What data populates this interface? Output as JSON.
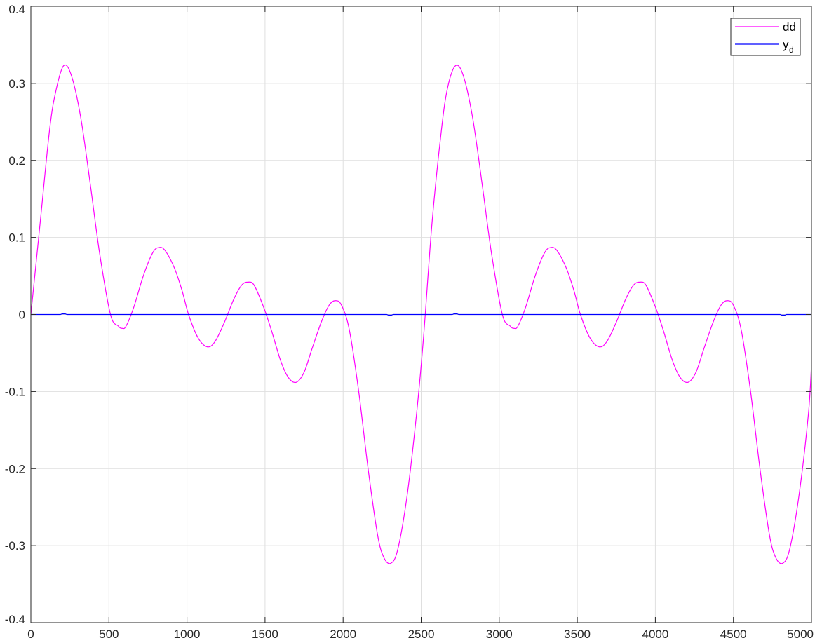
{
  "chart_data": {
    "type": "line",
    "xlim": [
      0,
      5000
    ],
    "ylim": [
      -0.4,
      0.4
    ],
    "grid": true,
    "legend_placement": "top-right",
    "x_ticks": [
      "0",
      "500",
      "1000",
      "1500",
      "2000",
      "2500",
      "3000",
      "3500",
      "4000",
      "4500",
      "5000"
    ],
    "y_ticks": [
      "-0.4",
      "-0.3",
      "-0.2",
      "-0.1",
      "0",
      "0.1",
      "0.2",
      "0.3",
      "0.4"
    ],
    "x_tick_values": [
      0,
      500,
      1000,
      1500,
      2000,
      2500,
      3000,
      3500,
      4000,
      4500,
      5000
    ],
    "y_tick_values": [
      -0.4,
      -0.3,
      -0.2,
      -0.1,
      0,
      0.1,
      0.2,
      0.3,
      0.4
    ],
    "series": [
      {
        "name": "dd",
        "color": "#ff00ff",
        "points": [
          [
            0,
            0
          ],
          [
            60,
            0.12
          ],
          [
            120,
            0.24
          ],
          [
            160,
            0.29
          ],
          [
            210,
            0.323
          ],
          [
            260,
            0.31
          ],
          [
            320,
            0.255
          ],
          [
            380,
            0.17
          ],
          [
            440,
            0.08
          ],
          [
            510,
            0.0
          ],
          [
            560,
            -0.015
          ],
          [
            585,
            -0.018
          ],
          [
            610,
            -0.015
          ],
          [
            660,
            0.01
          ],
          [
            720,
            0.05
          ],
          [
            780,
            0.08
          ],
          [
            820,
            0.087
          ],
          [
            860,
            0.083
          ],
          [
            920,
            0.06
          ],
          [
            970,
            0.03
          ],
          [
            1010,
            0.0
          ],
          [
            1070,
            -0.03
          ],
          [
            1130,
            -0.042
          ],
          [
            1180,
            -0.035
          ],
          [
            1240,
            -0.01
          ],
          [
            1300,
            0.02
          ],
          [
            1350,
            0.038
          ],
          [
            1390,
            0.042
          ],
          [
            1430,
            0.038
          ],
          [
            1490,
            0.01
          ],
          [
            1540,
            -0.02
          ],
          [
            1600,
            -0.06
          ],
          [
            1650,
            -0.082
          ],
          [
            1700,
            -0.088
          ],
          [
            1750,
            -0.075
          ],
          [
            1800,
            -0.045
          ],
          [
            1860,
            -0.01
          ],
          [
            1910,
            0.012
          ],
          [
            1950,
            0.018
          ],
          [
            1990,
            0.012
          ],
          [
            2040,
            -0.02
          ],
          [
            2100,
            -0.1
          ],
          [
            2160,
            -0.2
          ],
          [
            2220,
            -0.285
          ],
          [
            2260,
            -0.315
          ],
          [
            2305,
            -0.323
          ],
          [
            2350,
            -0.305
          ],
          [
            2410,
            -0.235
          ],
          [
            2470,
            -0.13
          ],
          [
            2515,
            -0.03
          ],
          [
            2570,
            0.12
          ],
          [
            2630,
            0.24
          ],
          [
            2670,
            0.295
          ],
          [
            2720,
            0.323
          ],
          [
            2770,
            0.31
          ],
          [
            2830,
            0.255
          ],
          [
            2890,
            0.17
          ],
          [
            2950,
            0.08
          ],
          [
            3020,
            0.0
          ],
          [
            3070,
            -0.015
          ],
          [
            3095,
            -0.018
          ],
          [
            3120,
            -0.015
          ],
          [
            3170,
            0.01
          ],
          [
            3230,
            0.05
          ],
          [
            3290,
            0.08
          ],
          [
            3330,
            0.087
          ],
          [
            3370,
            0.083
          ],
          [
            3430,
            0.06
          ],
          [
            3480,
            0.03
          ],
          [
            3520,
            0.0
          ],
          [
            3580,
            -0.03
          ],
          [
            3640,
            -0.042
          ],
          [
            3690,
            -0.035
          ],
          [
            3750,
            -0.01
          ],
          [
            3810,
            0.02
          ],
          [
            3860,
            0.038
          ],
          [
            3900,
            0.042
          ],
          [
            3940,
            0.038
          ],
          [
            4000,
            0.01
          ],
          [
            4050,
            -0.02
          ],
          [
            4110,
            -0.06
          ],
          [
            4160,
            -0.082
          ],
          [
            4210,
            -0.088
          ],
          [
            4260,
            -0.075
          ],
          [
            4310,
            -0.045
          ],
          [
            4370,
            -0.01
          ],
          [
            4420,
            0.012
          ],
          [
            4460,
            0.018
          ],
          [
            4500,
            0.012
          ],
          [
            4550,
            -0.02
          ],
          [
            4610,
            -0.1
          ],
          [
            4670,
            -0.2
          ],
          [
            4730,
            -0.285
          ],
          [
            4770,
            -0.315
          ],
          [
            4815,
            -0.323
          ],
          [
            4860,
            -0.305
          ],
          [
            4920,
            -0.235
          ],
          [
            4980,
            -0.13
          ],
          [
            5000,
            -0.065
          ]
        ]
      },
      {
        "name": "y_d",
        "color": "#0000ff",
        "points": [
          [
            0,
            0
          ],
          [
            190,
            0
          ],
          [
            200,
            0.0008
          ],
          [
            220,
            0.0008
          ],
          [
            230,
            0
          ],
          [
            2280,
            0
          ],
          [
            2290,
            -0.0008
          ],
          [
            2310,
            -0.0008
          ],
          [
            2320,
            0
          ],
          [
            2700,
            0
          ],
          [
            2710,
            0.0008
          ],
          [
            2730,
            0.0008
          ],
          [
            2740,
            0
          ],
          [
            4800,
            0
          ],
          [
            4810,
            -0.0008
          ],
          [
            4830,
            -0.0008
          ],
          [
            4840,
            0
          ],
          [
            5000,
            0
          ]
        ]
      }
    ],
    "legend": [
      {
        "text": "dd",
        "sub": "",
        "color": "#ff00ff"
      },
      {
        "text": "y",
        "sub": "d",
        "color": "#0000ff"
      }
    ]
  }
}
